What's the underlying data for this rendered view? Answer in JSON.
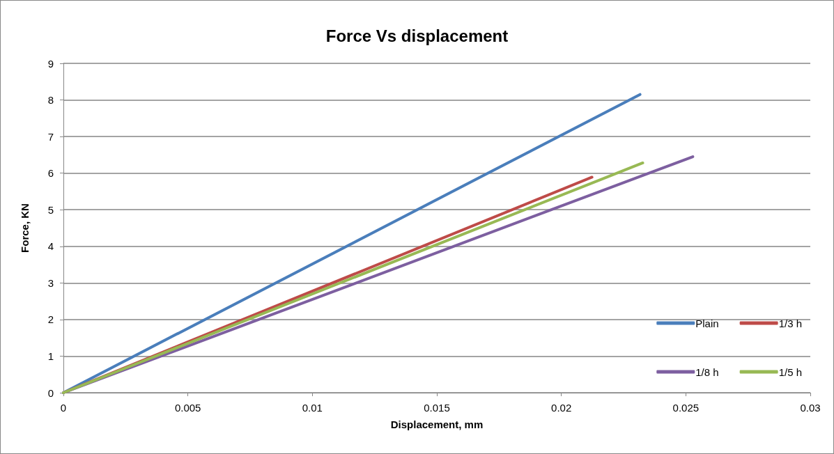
{
  "chart_data": {
    "type": "line",
    "title": "Force Vs displacement",
    "xlabel": "Displacement, mm",
    "ylabel": "Force, KN",
    "series": [
      {
        "name": "Plain",
        "color": "#4a7ebb",
        "x": [
          0,
          0.02316
        ],
        "values": [
          0,
          8.15
        ]
      },
      {
        "name": "1/3 h",
        "color": "#be4b48",
        "x": [
          0,
          0.02123
        ],
        "values": [
          0,
          5.89
        ]
      },
      {
        "name": "1/8 h",
        "color": "#7d5fa0",
        "x": [
          0,
          0.02528
        ],
        "values": [
          0,
          6.45
        ]
      },
      {
        "name": "1/5 h",
        "color": "#98b954",
        "x": [
          0,
          0.02327
        ],
        "values": [
          0,
          6.28
        ]
      }
    ],
    "xlim": [
      0,
      0.03
    ],
    "xticks": [
      0,
      0.005,
      0.01,
      0.015,
      0.02,
      0.025,
      0.03
    ],
    "ylim": [
      0,
      9
    ],
    "yticks": [
      0,
      1,
      2,
      3,
      4,
      5,
      6,
      7,
      8,
      9
    ],
    "grid": "y",
    "legend": "bottom right",
    "marker": "none",
    "line_style": "solid"
  }
}
